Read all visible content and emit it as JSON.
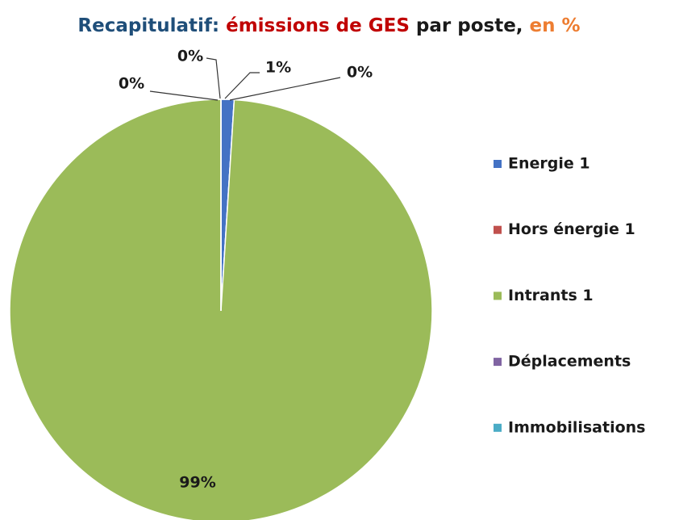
{
  "chart_data": {
    "type": "pie",
    "title_parts": [
      {
        "text": "Recapitulatif: ",
        "color": "#1f4e79"
      },
      {
        "text": "émissions de GES",
        "color": "#c00000"
      },
      {
        "text": " par poste, ",
        "color": "#1a1a1a"
      },
      {
        "text": "en %",
        "color": "#ed7d31"
      }
    ],
    "categories": [
      "Energie 1",
      "Hors énergie 1",
      "Intrants 1",
      "Déplacements",
      "Immobilisations"
    ],
    "values": [
      1,
      0,
      99,
      0,
      0
    ],
    "value_labels": [
      "1%",
      "0%",
      "99%",
      "0%",
      "0%"
    ],
    "colors": [
      "#4472c4",
      "#c0504d",
      "#9bbb59",
      "#8064a2",
      "#4bacc6"
    ],
    "legend": "right"
  }
}
